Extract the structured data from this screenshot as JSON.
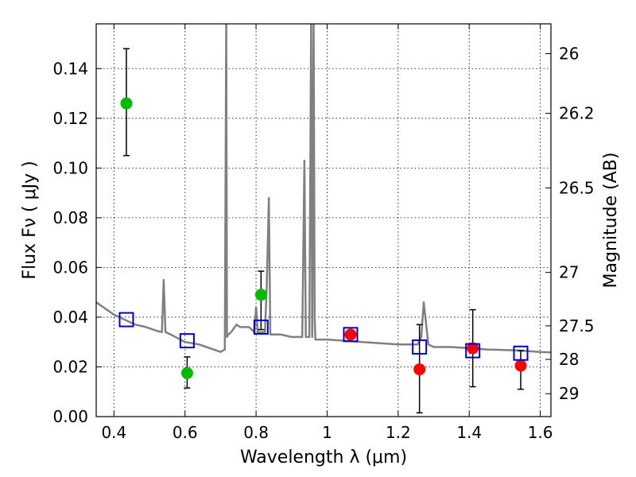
{
  "chart_data": {
    "type": "scatter",
    "title": "",
    "xlabel": "Wavelength  λ (μm)",
    "ylabel": "Flux  Fν  ( μJy )",
    "y2label": "Magnitude (AB)",
    "xlim": [
      0.35,
      1.63
    ],
    "ylim": [
      0.0,
      0.158
    ],
    "grid": true,
    "x_ticks": [
      0.4,
      0.6,
      0.8,
      1.0,
      1.2,
      1.4,
      1.6
    ],
    "x_tick_labels": [
      "0.4",
      "0.6",
      "0.8",
      "1",
      "1.2",
      "1.4",
      "1.6"
    ],
    "y_ticks": [
      0.0,
      0.02,
      0.04,
      0.06,
      0.08,
      0.1,
      0.12,
      0.14
    ],
    "y_tick_labels": [
      "0.00",
      "0.02",
      "0.04",
      "0.06",
      "0.08",
      "0.10",
      "0.12",
      "0.14"
    ],
    "y2_ticks": [
      {
        "label": "26",
        "flux": 0.146
      },
      {
        "label": "26.2",
        "flux": 0.122
      },
      {
        "label": "26.5",
        "flux": 0.092
      },
      {
        "label": "27",
        "flux": 0.058
      },
      {
        "label": "27.5",
        "flux": 0.0365
      },
      {
        "label": "28",
        "flux": 0.023
      },
      {
        "label": "29",
        "flux": 0.0092
      }
    ],
    "colors": {
      "model": "#808080",
      "green_points": "#00bb00",
      "red_points": "#ff0000",
      "model_photometry": "#0000cc",
      "error_bars": "#000000"
    },
    "model_spectrum": {
      "x": [
        0.35,
        0.37,
        0.4,
        0.43,
        0.46,
        0.49,
        0.52,
        0.535,
        0.54,
        0.545,
        0.56,
        0.6,
        0.64,
        0.68,
        0.7,
        0.712,
        0.716,
        0.718,
        0.722,
        0.73,
        0.745,
        0.755,
        0.765,
        0.78,
        0.795,
        0.8,
        0.805,
        0.815,
        0.825,
        0.83,
        0.836,
        0.84,
        0.87,
        0.9,
        0.93,
        0.936,
        0.94,
        0.95,
        0.955,
        0.958,
        0.962,
        0.965,
        0.967,
        0.97,
        1.0,
        1.05,
        1.1,
        1.15,
        1.2,
        1.23,
        1.255,
        1.265,
        1.272,
        1.285,
        1.3,
        1.35,
        1.4,
        1.45,
        1.5,
        1.55,
        1.6,
        1.63
      ],
      "y": [
        0.046,
        0.044,
        0.041,
        0.039,
        0.037,
        0.036,
        0.0345,
        0.034,
        0.055,
        0.034,
        0.033,
        0.03,
        0.029,
        0.027,
        0.026,
        0.027,
        0.16,
        0.032,
        0.033,
        0.034,
        0.037,
        0.036,
        0.036,
        0.036,
        0.034,
        0.044,
        0.034,
        0.034,
        0.034,
        0.052,
        0.088,
        0.033,
        0.033,
        0.032,
        0.032,
        0.103,
        0.032,
        0.032,
        0.16,
        0.032,
        0.16,
        0.04,
        0.031,
        0.031,
        0.031,
        0.0305,
        0.03,
        0.0295,
        0.029,
        0.029,
        0.029,
        0.032,
        0.046,
        0.029,
        0.028,
        0.028,
        0.0275,
        0.027,
        0.0268,
        0.0265,
        0.026,
        0.0258
      ]
    },
    "series": [
      {
        "marker": "circle",
        "color": "green",
        "points": [
          {
            "x": 0.435,
            "y": 0.126,
            "err_low": 0.105,
            "err_high": 0.148
          },
          {
            "x": 0.606,
            "y": 0.0175,
            "err_low": 0.0115,
            "err_high": 0.024
          },
          {
            "x": 0.814,
            "y": 0.049,
            "err_low": 0.035,
            "err_high": 0.0585
          }
        ]
      },
      {
        "marker": "circle",
        "color": "red",
        "points": [
          {
            "x": 1.066,
            "y": 0.033,
            "err_low": null,
            "err_high": null
          },
          {
            "x": 1.26,
            "y": 0.019,
            "err_low": 0.0015,
            "err_high": 0.037
          },
          {
            "x": 1.41,
            "y": 0.0275,
            "err_low": 0.012,
            "err_high": 0.043
          },
          {
            "x": 1.545,
            "y": 0.0205,
            "err_low": 0.011,
            "err_high": 0.0265
          }
        ]
      },
      {
        "marker": "square",
        "color": "blue",
        "points": [
          {
            "x": 0.435,
            "y": 0.039
          },
          {
            "x": 0.606,
            "y": 0.0305
          },
          {
            "x": 0.814,
            "y": 0.036
          },
          {
            "x": 1.066,
            "y": 0.033
          },
          {
            "x": 1.26,
            "y": 0.028
          },
          {
            "x": 1.41,
            "y": 0.0265
          },
          {
            "x": 1.545,
            "y": 0.0255
          }
        ]
      }
    ]
  }
}
